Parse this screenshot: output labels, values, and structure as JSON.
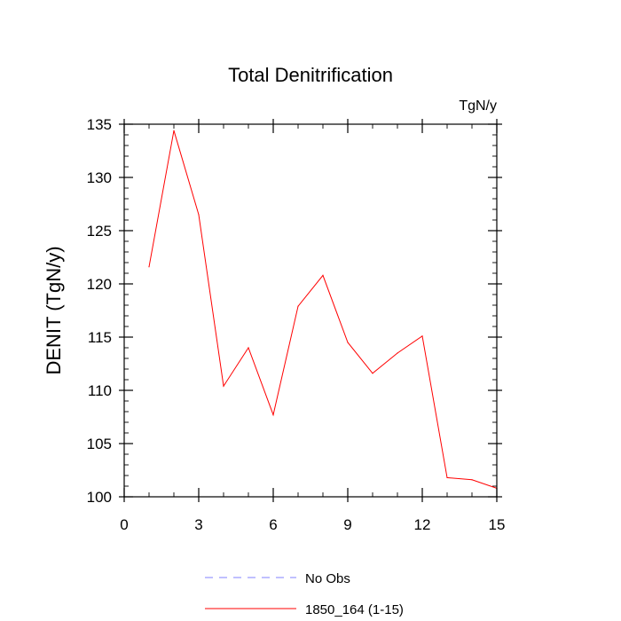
{
  "chart_data": {
    "type": "line",
    "title": "Total Denitrification",
    "units_label": "TgN/y",
    "xlabel": "",
    "ylabel": "DENIT  (TgN/y)",
    "xlim": [
      0,
      15
    ],
    "ylim": [
      100,
      135
    ],
    "x_ticks": [
      0,
      3,
      6,
      9,
      12,
      15
    ],
    "y_ticks": [
      100,
      105,
      110,
      115,
      120,
      125,
      130,
      135
    ],
    "x_tick_labels": [
      "0",
      "3",
      "6",
      "9",
      "12",
      "15"
    ],
    "y_tick_labels": [
      "100",
      "105",
      "110",
      "115",
      "120",
      "125",
      "130",
      "135"
    ],
    "series": [
      {
        "name": "1850_164 (1-15)",
        "color": "#ff0000",
        "x": [
          1,
          2,
          3,
          4,
          5,
          6,
          7,
          8,
          9,
          10,
          11,
          12,
          13,
          14,
          15
        ],
        "values": [
          121.6,
          134.4,
          126.5,
          110.4,
          114.0,
          107.7,
          117.9,
          120.8,
          114.5,
          111.6,
          113.5,
          115.1,
          101.8,
          101.6,
          100.8
        ]
      }
    ],
    "legend": [
      {
        "label": "No Obs",
        "color": "#8080ff",
        "style": "dashed"
      },
      {
        "label": "1850_164 (1-15)",
        "color": "#ff0000",
        "style": "solid"
      }
    ],
    "legend_position": "bottom"
  }
}
